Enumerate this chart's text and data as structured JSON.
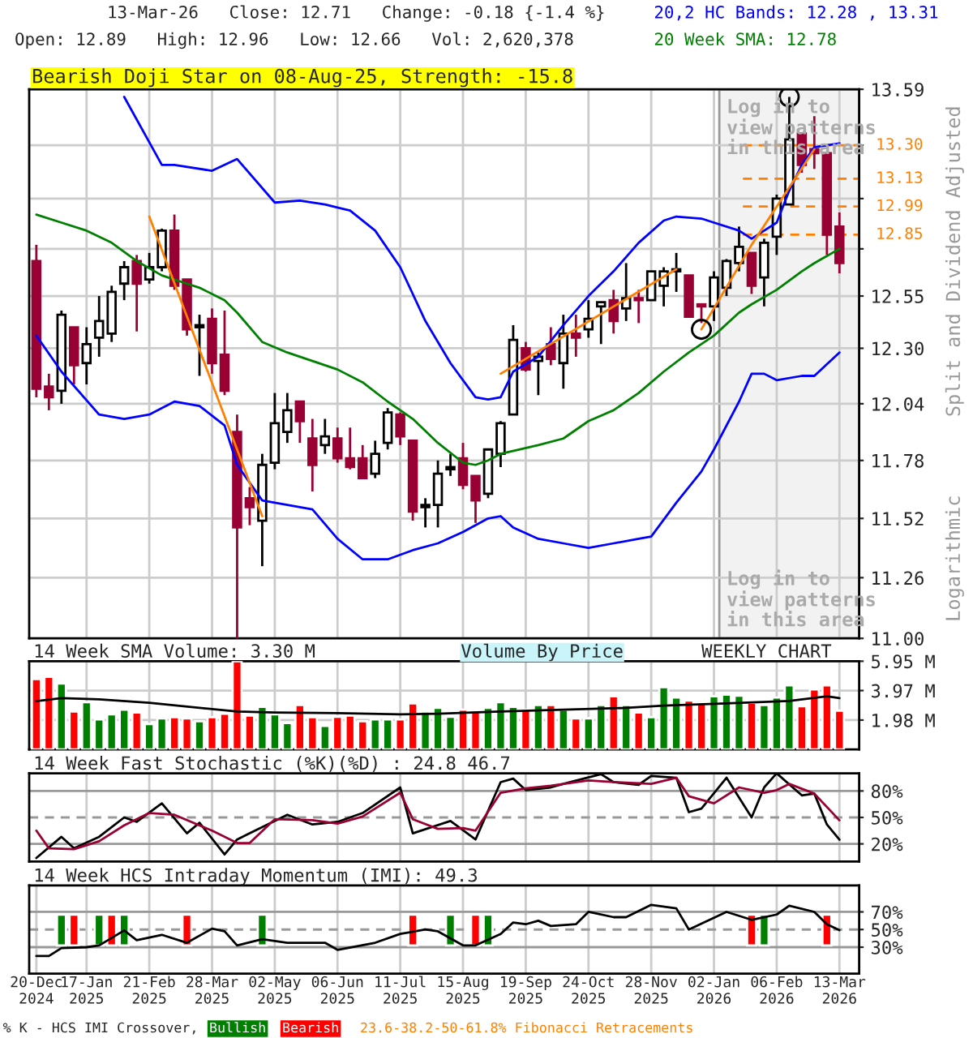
{
  "chart_data": [
    {
      "type": "candlestick",
      "title": "13-Mar-26   Close: 12.71   Change: -0.18 {-1.4 %}",
      "subtitle": "Open: 12.89   High: 12.96   Low: 12.66   Vol: 2,620,378",
      "ylabel": "Split and Dividend Adjusted",
      "annotations": [
        "Bearish Doji Star on 08-Aug-25, Strength: -15.8",
        "Log in to\nview patterns\nin this area",
        "Log in to\nview patterns\nin this area",
        "Logarithmic"
      ],
      "x": [
        "2024-12-20",
        "2024-12-27",
        "2025-01-03",
        "2025-01-10",
        "2025-01-17",
        "2025-01-24",
        "2025-01-31",
        "2025-02-07",
        "2025-02-14",
        "2025-02-21",
        "2025-02-28",
        "2025-03-07",
        "2025-03-14",
        "2025-03-21",
        "2025-03-28",
        "2025-04-04",
        "2025-04-11",
        "2025-04-18",
        "2025-04-25",
        "2025-05-02",
        "2025-05-09",
        "2025-05-16",
        "2025-05-23",
        "2025-05-30",
        "2025-06-06",
        "2025-06-13",
        "2025-06-20",
        "2025-06-27",
        "2025-07-04",
        "2025-07-11",
        "2025-07-18",
        "2025-07-25",
        "2025-08-01",
        "2025-08-08",
        "2025-08-15",
        "2025-08-22",
        "2025-08-29",
        "2025-09-05",
        "2025-09-12",
        "2025-09-19",
        "2025-09-26",
        "2025-10-03",
        "2025-10-10",
        "2025-10-17",
        "2025-10-24",
        "2025-10-31",
        "2025-11-07",
        "2025-11-14",
        "2025-11-21",
        "2025-11-28",
        "2025-12-05",
        "2025-12-12",
        "2025-12-19",
        "2025-12-26",
        "2026-01-02",
        "2026-01-09",
        "2026-01-16",
        "2026-01-23",
        "2026-01-30",
        "2026-02-06",
        "2026-02-13",
        "2026-02-20",
        "2026-02-27",
        "2026-03-06",
        "2026-03-13"
      ],
      "ohlc": [
        [
          12.72,
          12.8,
          12.07,
          12.11
        ],
        [
          12.12,
          12.18,
          12.01,
          12.07
        ],
        [
          12.1,
          12.48,
          12.04,
          12.46
        ],
        [
          12.4,
          12.4,
          12.13,
          12.22
        ],
        [
          12.23,
          12.4,
          12.13,
          12.32
        ],
        [
          12.35,
          12.55,
          12.26,
          12.43
        ],
        [
          12.37,
          12.6,
          12.33,
          12.57
        ],
        [
          12.61,
          12.72,
          12.53,
          12.69
        ],
        [
          12.72,
          12.75,
          12.38,
          12.61
        ],
        [
          12.63,
          12.76,
          12.61,
          12.69
        ],
        [
          12.69,
          12.88,
          12.67,
          12.87
        ],
        [
          12.87,
          12.95,
          12.58,
          12.6
        ],
        [
          12.63,
          12.63,
          12.36,
          12.39
        ],
        [
          12.4,
          12.46,
          12.17,
          12.41
        ],
        [
          12.44,
          12.49,
          12.18,
          12.23
        ],
        [
          12.27,
          12.48,
          12.08,
          12.1
        ],
        [
          11.91,
          11.99,
          11.0,
          11.48
        ],
        [
          11.61,
          11.66,
          11.49,
          11.57
        ],
        [
          11.51,
          11.81,
          11.31,
          11.76
        ],
        [
          11.77,
          12.09,
          11.74,
          11.95
        ],
        [
          11.91,
          12.09,
          11.86,
          12.01
        ],
        [
          12.05,
          12.05,
          11.86,
          11.96
        ],
        [
          11.88,
          11.97,
          11.64,
          11.76
        ],
        [
          11.85,
          11.97,
          11.81,
          11.89
        ],
        [
          11.88,
          11.93,
          11.77,
          11.79
        ],
        [
          11.79,
          11.93,
          11.74,
          11.75
        ],
        [
          11.79,
          11.85,
          11.7,
          11.7
        ],
        [
          11.72,
          11.87,
          11.7,
          11.81
        ],
        [
          11.86,
          12.02,
          11.83,
          12.0
        ],
        [
          11.99,
          12.0,
          11.85,
          11.89
        ],
        [
          11.87,
          11.87,
          11.51,
          11.55
        ],
        [
          11.57,
          11.61,
          11.48,
          11.58
        ],
        [
          11.58,
          11.78,
          11.48,
          11.72
        ],
        [
          11.74,
          11.81,
          11.71,
          11.75
        ],
        [
          11.79,
          11.86,
          11.65,
          11.67
        ],
        [
          11.71,
          11.71,
          11.5,
          11.6
        ],
        [
          11.63,
          11.83,
          11.61,
          11.83
        ],
        [
          11.81,
          11.96,
          11.75,
          11.95
        ],
        [
          11.99,
          12.41,
          11.99,
          12.34
        ],
        [
          12.3,
          12.33,
          12.19,
          12.2
        ],
        [
          12.24,
          12.28,
          12.08,
          12.26
        ],
        [
          12.32,
          12.4,
          12.22,
          12.25
        ],
        [
          12.23,
          12.46,
          12.11,
          12.37
        ],
        [
          12.37,
          12.46,
          12.26,
          12.35
        ],
        [
          12.39,
          12.53,
          12.35,
          12.44
        ],
        [
          12.5,
          12.52,
          12.32,
          12.52
        ],
        [
          12.53,
          12.58,
          12.37,
          12.43
        ],
        [
          12.49,
          12.71,
          12.43,
          12.54
        ],
        [
          12.54,
          12.58,
          12.42,
          12.53
        ],
        [
          12.53,
          12.67,
          12.53,
          12.67
        ],
        [
          12.6,
          12.69,
          12.5,
          12.67
        ],
        [
          12.67,
          12.76,
          12.57,
          12.68
        ],
        [
          12.65,
          12.65,
          12.45,
          12.45
        ],
        [
          12.51,
          12.51,
          12.42,
          12.5
        ],
        [
          12.5,
          12.67,
          12.43,
          12.64
        ],
        [
          12.59,
          12.73,
          12.55,
          12.72
        ],
        [
          12.71,
          12.89,
          12.67,
          12.79
        ],
        [
          12.76,
          12.76,
          12.56,
          12.6
        ],
        [
          12.64,
          12.83,
          12.5,
          12.81
        ],
        [
          12.84,
          13.05,
          12.75,
          13.03
        ],
        [
          13.0,
          13.55,
          13.0,
          13.33
        ],
        [
          13.36,
          13.36,
          13.16,
          13.2
        ],
        [
          13.28,
          13.45,
          13.18,
          13.26
        ],
        [
          13.26,
          13.26,
          12.75,
          12.85
        ],
        [
          12.89,
          12.96,
          12.66,
          12.71
        ]
      ],
      "colors": [
        "#990033",
        "#990033",
        "#000000",
        "#990033",
        "#000000",
        "#000000",
        "#000000",
        "#000000",
        "#990033",
        "#000000",
        "#000000",
        "#990033",
        "#990033",
        "#000000",
        "#990033",
        "#990033",
        "#990033",
        "#990033",
        "#000000",
        "#000000",
        "#000000",
        "#990033",
        "#990033",
        "#000000",
        "#990033",
        "#990033",
        "#990033",
        "#000000",
        "#000000",
        "#990033",
        "#990033",
        "#000000",
        "#000000",
        "#000000",
        "#990033",
        "#990033",
        "#000000",
        "#000000",
        "#000000",
        "#990033",
        "#000000",
        "#990033",
        "#000000",
        "#990033",
        "#000000",
        "#000000",
        "#990033",
        "#000000",
        "#990033",
        "#000000",
        "#000000",
        "#000000",
        "#990033",
        "#990033",
        "#000000",
        "#000000",
        "#000000",
        "#990033",
        "#000000",
        "#000000",
        "#000000",
        "#990033",
        "#990033",
        "#990033",
        "#990033"
      ],
      "series": [
        {
          "type": "line",
          "name": "20,2 HC Bands: 12.28 , 13.31",
          "color": "#0000ff",
          "x": [
            "2025-02-07",
            "2025-02-28",
            "2025-03-07",
            "2025-03-28",
            "2025-04-04",
            "2025-04-11",
            "2025-05-02",
            "2025-05-16",
            "2025-05-30",
            "2025-06-13",
            "2025-06-27",
            "2025-07-11",
            "2025-07-25",
            "2025-08-08",
            "2025-08-22",
            "2025-08-29",
            "2025-09-05",
            "2025-09-12",
            "2025-09-26",
            "2025-10-10",
            "2025-10-24",
            "2025-11-07",
            "2025-11-21",
            "2025-12-05",
            "2025-12-12",
            "2025-12-26",
            "2026-01-02",
            "2026-01-16",
            "2026-01-23",
            "2026-01-30",
            "2026-02-06",
            "2026-02-13",
            "2026-02-20",
            "2026-02-27",
            "2026-03-13"
          ],
          "values": [
            13.55,
            13.2,
            13.2,
            13.17,
            13.2,
            13.23,
            13.01,
            13.02,
            13.0,
            12.97,
            12.87,
            12.69,
            12.43,
            12.23,
            12.07,
            12.06,
            12.07,
            12.19,
            12.26,
            12.41,
            12.55,
            12.67,
            12.81,
            12.92,
            12.94,
            12.93,
            12.91,
            12.87,
            12.83,
            12.87,
            12.91,
            13.07,
            13.2,
            13.29,
            13.31
          ]
        },
        {
          "type": "line",
          "color": "#0000ff",
          "x": [
            "2024-12-20",
            "2025-01-03",
            "2025-01-24",
            "2025-02-07",
            "2025-02-21",
            "2025-03-07",
            "2025-03-21",
            "2025-04-04",
            "2025-04-11",
            "2025-04-25",
            "2025-05-09",
            "2025-05-23",
            "2025-06-06",
            "2025-06-20",
            "2025-07-04",
            "2025-07-18",
            "2025-08-01",
            "2025-08-15",
            "2025-08-29",
            "2025-09-05",
            "2025-09-12",
            "2025-09-26",
            "2025-10-10",
            "2025-10-24",
            "2025-11-07",
            "2025-11-21",
            "2025-11-28",
            "2025-12-12",
            "2025-12-26",
            "2026-01-02",
            "2026-01-16",
            "2026-01-23",
            "2026-01-30",
            "2026-02-06",
            "2026-02-20",
            "2026-02-27",
            "2026-03-13"
          ],
          "values": [
            12.36,
            12.19,
            11.99,
            11.97,
            11.99,
            12.05,
            12.03,
            11.94,
            11.76,
            11.6,
            11.58,
            11.56,
            11.43,
            11.34,
            11.34,
            11.38,
            11.41,
            11.46,
            11.52,
            11.53,
            11.48,
            11.43,
            11.41,
            11.39,
            11.41,
            11.43,
            11.44,
            11.59,
            11.73,
            11.83,
            12.05,
            12.18,
            12.18,
            12.15,
            12.17,
            12.17,
            12.28
          ]
        },
        {
          "type": "line",
          "name": "20 Week SMA: 12.78",
          "color": "#008000",
          "x": [
            "2024-12-20",
            "2025-01-03",
            "2025-01-17",
            "2025-01-31",
            "2025-02-14",
            "2025-02-28",
            "2025-03-14",
            "2025-03-21",
            "2025-04-04",
            "2025-04-11",
            "2025-04-25",
            "2025-05-09",
            "2025-05-23",
            "2025-06-06",
            "2025-06-20",
            "2025-07-04",
            "2025-07-18",
            "2025-08-01",
            "2025-08-15",
            "2025-08-22",
            "2025-08-29",
            "2025-09-05",
            "2025-09-26",
            "2025-10-10",
            "2025-10-24",
            "2025-11-07",
            "2025-11-21",
            "2025-12-05",
            "2025-12-19",
            "2026-01-02",
            "2026-01-16",
            "2026-01-23",
            "2026-02-06",
            "2026-02-20",
            "2026-02-27",
            "2026-03-13"
          ],
          "values": [
            12.95,
            12.91,
            12.87,
            12.81,
            12.72,
            12.65,
            12.61,
            12.59,
            12.53,
            12.47,
            12.33,
            12.28,
            12.24,
            12.2,
            12.14,
            12.05,
            11.97,
            11.86,
            11.77,
            11.76,
            11.78,
            11.81,
            11.85,
            11.88,
            11.96,
            12.01,
            12.09,
            12.19,
            12.28,
            12.36,
            12.47,
            12.51,
            12.58,
            12.67,
            12.71,
            12.78
          ]
        },
        {
          "type": "line",
          "color": "#ff8000",
          "x": [
            "2025-02-21",
            "2025-04-25"
          ],
          "values": [
            12.94,
            11.53
          ]
        },
        {
          "type": "line",
          "color": "#ff8000",
          "x": [
            "2025-09-05",
            "2025-12-12"
          ],
          "values": [
            12.18,
            12.68
          ]
        },
        {
          "type": "line",
          "color": "#ff8000",
          "x": [
            "2025-12-26",
            "2026-01-23",
            "2026-02-27"
          ],
          "values": [
            12.39,
            12.8,
            13.28
          ]
        },
        {
          "type": "scatter",
          "color": "#000000",
          "marker": "circle",
          "x": [
            "2025-12-26",
            "2026-02-13"
          ],
          "values": [
            12.39,
            13.55
          ]
        }
      ],
      "bands": [
        {
          "axis": "x",
          "from": "2026-01-05",
          "to": "2026-03-24",
          "color": "#f2f2f2"
        }
      ],
      "ref_lines": [
        {
          "axis": "y",
          "value": 13.3,
          "label": "13.30",
          "color": "#ff8000",
          "line_style": "dashed"
        },
        {
          "axis": "y",
          "value": 13.13,
          "label": "13.13",
          "color": "#ff8000",
          "line_style": "dashed"
        },
        {
          "axis": "y",
          "value": 12.99,
          "label": "12.99",
          "color": "#ff8000",
          "line_style": "dashed"
        },
        {
          "axis": "y",
          "value": 12.85,
          "label": "12.85",
          "color": "#ff8000",
          "line_style": "dashed"
        }
      ],
      "log": true,
      "ylim": [
        11.0,
        13.59
      ],
      "yticks": [
        {
          "value": 11.0,
          "label": "11.00"
        },
        {
          "value": 11.26,
          "label": "11.26"
        },
        {
          "value": 11.52,
          "label": "11.52"
        },
        {
          "value": 11.78,
          "label": "11.78"
        },
        {
          "value": 12.04,
          "label": "12.04"
        },
        {
          "value": 12.3,
          "label": "12.30"
        },
        {
          "value": 12.55,
          "label": "12.55"
        },
        {
          "value": 12.78,
          "label": null
        },
        {
          "value": 13.03,
          "label": null
        },
        {
          "value": 13.3,
          "label": null
        },
        {
          "value": 13.59,
          "label": "13.59"
        }
      ],
      "xlim": [
        "2024-12-16",
        "2026-03-24"
      ],
      "xticks": [
        {
          "value": "2025-01-17",
          "label": null
        },
        {
          "value": "2025-02-21",
          "label": null
        },
        {
          "value": "2025-03-28",
          "label": null
        },
        {
          "value": "2025-05-02",
          "label": null
        },
        {
          "value": "2025-06-06",
          "label": null
        },
        {
          "value": "2025-07-11",
          "label": null
        },
        {
          "value": "2025-08-15",
          "label": null
        },
        {
          "value": "2025-09-19",
          "label": null
        },
        {
          "value": "2025-10-24",
          "label": null
        },
        {
          "value": "2025-11-28",
          "label": null
        },
        {
          "value": "2026-01-02",
          "label": null
        },
        {
          "value": "2026-02-06",
          "label": null
        },
        {
          "value": "2026-03-13",
          "label": null
        }
      ],
      "tick_labels": "y",
      "grid": true
    },
    {
      "type": "bar",
      "title": "14 Week SMA Volume: 3.30 M",
      "annotations": [
        "Volume By Price",
        "WEEKLY CHART"
      ],
      "x": [
        "2024-12-20",
        "2024-12-27",
        "2025-01-03",
        "2025-01-10",
        "2025-01-17",
        "2025-01-24",
        "2025-01-31",
        "2025-02-07",
        "2025-02-14",
        "2025-02-21",
        "2025-02-28",
        "2025-03-07",
        "2025-03-14",
        "2025-03-21",
        "2025-03-28",
        "2025-04-04",
        "2025-04-11",
        "2025-04-18",
        "2025-04-25",
        "2025-05-02",
        "2025-05-09",
        "2025-05-16",
        "2025-05-23",
        "2025-05-30",
        "2025-06-06",
        "2025-06-13",
        "2025-06-20",
        "2025-06-27",
        "2025-07-04",
        "2025-07-11",
        "2025-07-18",
        "2025-07-25",
        "2025-08-01",
        "2025-08-08",
        "2025-08-15",
        "2025-08-22",
        "2025-08-29",
        "2025-09-05",
        "2025-09-12",
        "2025-09-19",
        "2025-09-26",
        "2025-10-03",
        "2025-10-10",
        "2025-10-17",
        "2025-10-24",
        "2025-10-31",
        "2025-11-07",
        "2025-11-14",
        "2025-11-21",
        "2025-11-28",
        "2025-12-05",
        "2025-12-12",
        "2025-12-19",
        "2025-12-26",
        "2026-01-02",
        "2026-01-09",
        "2026-01-16",
        "2026-01-23",
        "2026-01-30",
        "2026-02-06",
        "2026-02-13",
        "2026-02-20",
        "2026-02-27",
        "2026-03-06",
        "2026-03-13"
      ],
      "series": [
        {
          "type": "bar",
          "colors": [
            "#ff0000",
            "#ff0000",
            "#008000",
            "#ff0000",
            "#008000",
            "#008000",
            "#008000",
            "#008000",
            "#ff0000",
            "#008000",
            "#008000",
            "#ff0000",
            "#ff0000",
            "#008000",
            "#ff0000",
            "#ff0000",
            "#ff0000",
            "#ff0000",
            "#008000",
            "#008000",
            "#008000",
            "#ff0000",
            "#ff0000",
            "#008000",
            "#ff0000",
            "#ff0000",
            "#ff0000",
            "#008000",
            "#008000",
            "#ff0000",
            "#ff0000",
            "#008000",
            "#008000",
            "#008000",
            "#ff0000",
            "#ff0000",
            "#008000",
            "#008000",
            "#008000",
            "#ff0000",
            "#008000",
            "#ff0000",
            "#008000",
            "#ff0000",
            "#008000",
            "#008000",
            "#ff0000",
            "#008000",
            "#ff0000",
            "#008000",
            "#008000",
            "#008000",
            "#ff0000",
            "#ff0000",
            "#008000",
            "#008000",
            "#008000",
            "#ff0000",
            "#008000",
            "#008000",
            "#008000",
            "#ff0000",
            "#ff0000",
            "#ff0000",
            "#ff0000"
          ],
          "values": [
            4.75,
            4.9,
            4.44,
            2.56,
            3.19,
            2.02,
            2.37,
            2.68,
            2.49,
            1.71,
            2.1,
            2.17,
            2.1,
            1.9,
            2.17,
            2.41,
            5.95,
            2.29,
            2.88,
            2.37,
            1.78,
            2.99,
            2.17,
            1.59,
            2.21,
            2.29,
            1.9,
            2.02,
            2.02,
            2.02,
            3.11,
            2.56,
            2.8,
            2.21,
            2.68,
            2.6,
            2.8,
            3.19,
            2.88,
            2.68,
            2.99,
            2.99,
            2.68,
            2.1,
            2.1,
            2.99,
            3.58,
            2.99,
            2.49,
            2.17,
            4.2,
            3.5,
            3.3,
            3.11,
            3.58,
            3.69,
            3.62,
            3.15,
            2.99,
            3.5,
            4.32,
            2.91,
            4.05,
            4.32,
            2.62
          ]
        },
        {
          "type": "line",
          "color": "#000000",
          "x": [
            "2024-12-20",
            "2025-01-03",
            "2025-01-24",
            "2025-02-21",
            "2025-03-28",
            "2025-04-11",
            "2025-05-02",
            "2025-06-06",
            "2025-07-11",
            "2025-08-01",
            "2025-09-05",
            "2025-10-10",
            "2025-11-14",
            "2025-12-05",
            "2026-01-09",
            "2026-02-13",
            "2026-03-06",
            "2026-03-13"
          ],
          "values": [
            3.26,
            3.46,
            3.38,
            3.15,
            2.72,
            2.56,
            2.49,
            2.45,
            2.37,
            2.41,
            2.56,
            2.68,
            2.8,
            2.95,
            3.11,
            3.27,
            3.58,
            3.46
          ]
        }
      ],
      "ylim": [
        0,
        5.95
      ],
      "yticks": [
        {
          "value": 1.98,
          "label": "1.98 M"
        },
        {
          "value": 3.97,
          "label": "3.97 M"
        },
        {
          "value": 5.95,
          "label": "5.95 M"
        }
      ],
      "xlim": [
        "2024-12-16",
        "2026-03-24"
      ],
      "xticks": [
        {
          "value": "2025-01-17",
          "label": null
        },
        {
          "value": "2025-02-21",
          "label": null
        },
        {
          "value": "2025-03-28",
          "label": null
        },
        {
          "value": "2025-05-02",
          "label": null
        },
        {
          "value": "2025-06-06",
          "label": null
        },
        {
          "value": "2025-07-11",
          "label": null
        },
        {
          "value": "2025-08-15",
          "label": null
        },
        {
          "value": "2025-09-19",
          "label": null
        },
        {
          "value": "2025-10-24",
          "label": null
        },
        {
          "value": "2025-11-28",
          "label": null
        },
        {
          "value": "2026-01-02",
          "label": null
        },
        {
          "value": "2026-02-06",
          "label": null
        },
        {
          "value": "2026-03-13",
          "label": null
        }
      ],
      "tick_labels": "y",
      "grid": true
    },
    {
      "type": "line",
      "title": "14 Week Fast Stochastic (%K)(%D) : 24.8 46.7",
      "series": [
        {
          "color": "#000000",
          "x": [
            "2024-12-20",
            "2025-01-03",
            "2025-01-10",
            "2025-01-24",
            "2025-02-07",
            "2025-02-14",
            "2025-02-28",
            "2025-03-14",
            "2025-03-21",
            "2025-04-04",
            "2025-04-11",
            "2025-04-18",
            "2025-05-09",
            "2025-05-23",
            "2025-06-06",
            "2025-06-20",
            "2025-07-11",
            "2025-07-18",
            "2025-08-08",
            "2025-08-22",
            "2025-09-05",
            "2025-09-12",
            "2025-09-19",
            "2025-10-03",
            "2025-10-10",
            "2025-10-31",
            "2025-11-07",
            "2025-11-21",
            "2025-11-28",
            "2025-12-12",
            "2025-12-19",
            "2025-12-26",
            "2026-01-09",
            "2026-01-23",
            "2026-01-30",
            "2026-02-06",
            "2026-02-20",
            "2026-02-27",
            "2026-03-06",
            "2026-03-13"
          ],
          "values": [
            4,
            28,
            15,
            28,
            50,
            45,
            66,
            32,
            44,
            8,
            25,
            32,
            53,
            42,
            45,
            55,
            84,
            32,
            46,
            25,
            90,
            94,
            81,
            84,
            88,
            99,
            90,
            87,
            97,
            95,
            56,
            60,
            95,
            50,
            84,
            100,
            75,
            77,
            42,
            24.8
          ]
        },
        {
          "color": "#990033",
          "x": [
            "2024-12-20",
            "2024-12-27",
            "2025-01-10",
            "2025-01-24",
            "2025-02-07",
            "2025-02-21",
            "2025-03-07",
            "2025-03-28",
            "2025-04-11",
            "2025-04-18",
            "2025-05-02",
            "2025-05-23",
            "2025-06-06",
            "2025-06-20",
            "2025-07-11",
            "2025-07-18",
            "2025-08-01",
            "2025-08-15",
            "2025-08-22",
            "2025-09-05",
            "2025-09-19",
            "2025-10-03",
            "2025-10-24",
            "2025-11-07",
            "2025-11-28",
            "2025-12-12",
            "2025-12-19",
            "2026-01-02",
            "2026-01-16",
            "2026-01-30",
            "2026-02-06",
            "2026-02-13",
            "2026-02-27",
            "2026-03-13"
          ],
          "values": [
            35,
            15,
            14,
            23,
            41,
            55,
            53,
            35,
            21,
            21,
            48,
            47,
            43,
            51,
            78,
            48,
            37,
            38,
            35,
            78,
            83,
            86,
            92,
            90,
            88,
            95,
            74,
            66,
            84,
            78,
            81,
            88,
            77,
            46.7
          ]
        }
      ],
      "ref_lines": [
        {
          "axis": "y",
          "value": 80,
          "color": "#999999",
          "line_style": "solid"
        },
        {
          "axis": "y",
          "value": 50,
          "color": "#999999",
          "line_style": "dashed"
        },
        {
          "axis": "y",
          "value": 20,
          "color": "#999999",
          "line_style": "solid"
        }
      ],
      "ylim": [
        0,
        100
      ],
      "yticks": [
        {
          "value": 20,
          "label": "20%"
        },
        {
          "value": 50,
          "label": "50%"
        },
        {
          "value": 80,
          "label": "80%"
        }
      ],
      "xlim": [
        "2024-12-16",
        "2026-03-24"
      ],
      "xticks": [
        {
          "value": "2025-01-17",
          "label": null
        },
        {
          "value": "2025-02-21",
          "label": null
        },
        {
          "value": "2025-03-28",
          "label": null
        },
        {
          "value": "2025-05-02",
          "label": null
        },
        {
          "value": "2025-06-06",
          "label": null
        },
        {
          "value": "2025-07-11",
          "label": null
        },
        {
          "value": "2025-08-15",
          "label": null
        },
        {
          "value": "2025-09-19",
          "label": null
        },
        {
          "value": "2025-10-24",
          "label": null
        },
        {
          "value": "2025-11-28",
          "label": null
        },
        {
          "value": "2026-01-02",
          "label": null
        },
        {
          "value": "2026-02-06",
          "label": null
        },
        {
          "value": "2026-03-13",
          "label": null
        }
      ],
      "tick_labels": "y",
      "grid": "x"
    },
    {
      "type": "line",
      "title": "14 Week HCS Intraday Momentum (IMI): 49.3",
      "annotations": [
        "% K - HCS IMI Crossover,",
        "23.6-38.2-50-61.8% Fibonacci Retracements"
      ],
      "x": [
        "2024-12-20",
        "2024-12-27",
        "2025-01-03",
        "2025-01-17",
        "2025-01-24",
        "2025-02-07",
        "2025-02-14",
        "2025-02-28",
        "2025-03-14",
        "2025-03-28",
        "2025-04-04",
        "2025-04-11",
        "2025-04-25",
        "2025-05-09",
        "2025-05-30",
        "2025-06-06",
        "2025-06-27",
        "2025-07-11",
        "2025-07-25",
        "2025-08-01",
        "2025-08-15",
        "2025-08-22",
        "2025-09-05",
        "2025-09-12",
        "2025-09-19",
        "2025-09-26",
        "2025-10-03",
        "2025-10-17",
        "2025-10-24",
        "2025-11-07",
        "2025-11-14",
        "2025-11-28",
        "2025-12-12",
        "2025-12-19",
        "2026-01-09",
        "2026-01-23",
        "2026-02-06",
        "2026-02-13",
        "2026-02-27",
        "2026-03-06",
        "2026-03-13"
      ],
      "series": [
        {
          "type": "line",
          "color": "#000000",
          "values": [
            20,
            20,
            29,
            30,
            32,
            49,
            38,
            44,
            35,
            51,
            48,
            32,
            39,
            35,
            35,
            27,
            35,
            45,
            50,
            48,
            32,
            32,
            45,
            58,
            56,
            60,
            54,
            56,
            70,
            64,
            64,
            78,
            74,
            50,
            70,
            61,
            67,
            77,
            70,
            56,
            49.3
          ]
        },
        {
          "type": "bar",
          "name": "Bullish",
          "color": "#008000",
          "x": [
            "2025-01-03",
            "2025-01-24",
            "2025-02-07",
            "2025-04-25",
            "2025-08-08",
            "2025-08-29",
            "2026-01-30"
          ],
          "base": [
            32,
            32,
            32,
            32,
            32,
            32,
            32
          ],
          "values": [
            35,
            35,
            35,
            35,
            35,
            35,
            35
          ]
        },
        {
          "type": "bar",
          "name": "Bearish",
          "color": "#ff0000",
          "x": [
            "2025-01-10",
            "2025-01-31",
            "2025-03-14",
            "2025-07-18",
            "2025-08-22",
            "2026-01-23",
            "2026-03-06"
          ],
          "base": [
            32,
            32,
            32,
            32,
            32,
            32,
            32
          ],
          "values": [
            35,
            35,
            35,
            35,
            35,
            35,
            35
          ]
        }
      ],
      "ref_lines": [
        {
          "axis": "y",
          "value": 70,
          "color": "#999999",
          "line_style": "solid"
        },
        {
          "axis": "y",
          "value": 50,
          "color": "#999999",
          "line_style": "dashed"
        },
        {
          "axis": "y",
          "value": 30,
          "color": "#999999",
          "line_style": "solid"
        }
      ],
      "ylim": [
        0,
        100
      ],
      "yticks": [
        {
          "value": 30,
          "label": "30%"
        },
        {
          "value": 50,
          "label": "50%"
        },
        {
          "value": 70,
          "label": "70%"
        }
      ],
      "xlim": [
        "2024-12-16",
        "2026-03-24"
      ],
      "xticks": [
        {
          "value": "2024-12-20",
          "label": "20-Dec\n2024"
        },
        {
          "value": "2025-01-17",
          "label": "17-Jan\n2025"
        },
        {
          "value": "2025-02-21",
          "label": "21-Feb\n2025"
        },
        {
          "value": "2025-03-28",
          "label": "28-Mar\n2025"
        },
        {
          "value": "2025-05-02",
          "label": "02-May\n2025"
        },
        {
          "value": "2025-06-06",
          "label": "06-Jun\n2025"
        },
        {
          "value": "2025-07-11",
          "label": "11-Jul\n2025"
        },
        {
          "value": "2025-08-15",
          "label": "15-Aug\n2025"
        },
        {
          "value": "2025-09-19",
          "label": "19-Sep\n2025"
        },
        {
          "value": "2025-10-24",
          "label": "24-Oct\n2025"
        },
        {
          "value": "2025-11-28",
          "label": "28-Nov\n2025"
        },
        {
          "value": "2026-01-02",
          "label": "02-Jan\n2026"
        },
        {
          "value": "2026-02-06",
          "label": "06-Feb\n2026"
        },
        {
          "value": "2026-03-13",
          "label": "13-Mar\n2026"
        }
      ],
      "grid": "x",
      "legend": "bottom"
    }
  ]
}
